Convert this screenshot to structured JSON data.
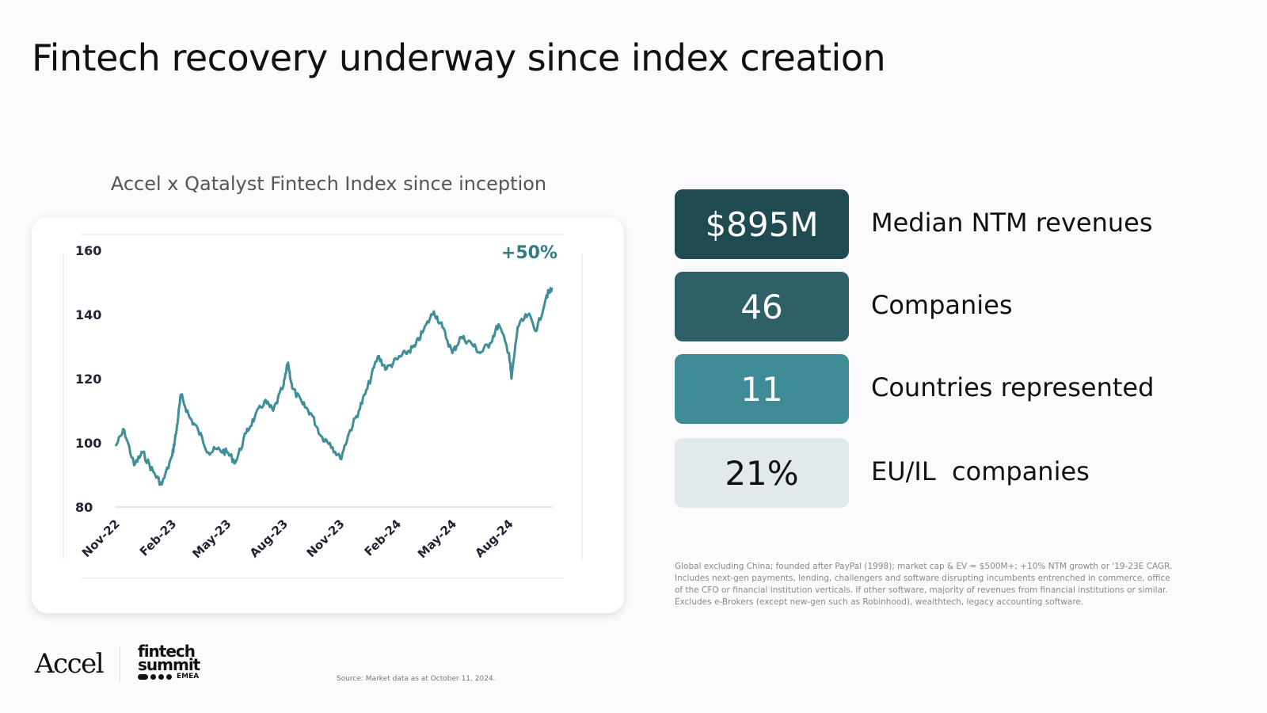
{
  "slide": {
    "title": "Fintech recovery underway since index creation",
    "chart_heading": "Accel x Qatalyst Fintech Index since inception",
    "footnote": "Global excluding China; founded after PayPal (1998); market cap & EV = $500M+; +10% NTM growth or '19-23E CAGR. Includes next-gen payments, lending, challengers and software disrupting incumbents entrenched in commerce, office of the CFO or financial institution verticals. If other software, majority of revenues from financial institutions or similar. Excludes e-Brokers (except new-gen such as Robinhood), wealthtech, legacy accounting software.",
    "source": "Source: Market data as at October 11, 2024.",
    "logos": {
      "accel": "Accel",
      "fintech_line1": "fintech",
      "fintech_line2": "summit",
      "fintech_line3": "EMEA"
    }
  },
  "stats": [
    {
      "value": "$895M",
      "label": "Median NTM revenues",
      "color": "#1f4a4f",
      "text_color": "#ffffff"
    },
    {
      "value": "46",
      "label": "Companies",
      "color": "#2f6068",
      "text_color": "#ffffff"
    },
    {
      "value": "11",
      "label": "Countries represented",
      "color": "#3f8b96",
      "text_color": "#ffffff"
    },
    {
      "value": "21%",
      "label": "EU/IL  companies",
      "color": "#e1e9eb",
      "text_color": "#111111"
    }
  ],
  "colors": {
    "line": "#3f8e98",
    "annotation": "#2f7c86",
    "accent_dark": "#1f4a4f"
  },
  "chart_data": {
    "type": "line",
    "title": "Accel x Qatalyst Fintech Index since inception",
    "xlabel": "",
    "ylabel": "",
    "ylim": [
      80,
      160
    ],
    "y_ticks": [
      160,
      140,
      120,
      100,
      80
    ],
    "x_tick_labels": [
      "Nov-22",
      "Feb-23",
      "May-23",
      "Aug-23",
      "Nov-23",
      "Feb-24",
      "May-24",
      "Aug-24"
    ],
    "x_range": [
      "2022-11-01",
      "2024-10-11"
    ],
    "annotation": "+50%",
    "grid": false,
    "series": [
      {
        "x": [
          "2022-11-01",
          "2022-11-15",
          "2022-12-01",
          "2022-12-15",
          "2023-01-01",
          "2023-01-15",
          "2023-02-01",
          "2023-02-08",
          "2023-02-15",
          "2023-03-01",
          "2023-03-15",
          "2023-04-01",
          "2023-04-15",
          "2023-05-01",
          "2023-05-15",
          "2023-06-01",
          "2023-06-15",
          "2023-07-01",
          "2023-07-15",
          "2023-08-01",
          "2023-08-08",
          "2023-08-15",
          "2023-09-01",
          "2023-09-15",
          "2023-10-01",
          "2023-10-15",
          "2023-11-01",
          "2023-11-15",
          "2023-12-01",
          "2023-12-15",
          "2024-01-01",
          "2024-01-15",
          "2024-02-01",
          "2024-02-15",
          "2024-03-01",
          "2024-03-15",
          "2024-04-01",
          "2024-04-15",
          "2024-05-01",
          "2024-05-15",
          "2024-06-01",
          "2024-06-15",
          "2024-07-01",
          "2024-07-15",
          "2024-08-01",
          "2024-08-05",
          "2024-08-15",
          "2024-09-01",
          "2024-09-15",
          "2024-10-01",
          "2024-10-11"
        ],
        "y": [
          99,
          104,
          93,
          97,
          91,
          87,
          96,
          104,
          115,
          108,
          104,
          97,
          98,
          97,
          94,
          103,
          108,
          113,
          110,
          118,
          125,
          117,
          112,
          109,
          102,
          100,
          95,
          103,
          110,
          117,
          127,
          123,
          126,
          128,
          130,
          135,
          141,
          136,
          128,
          133,
          131,
          128,
          131,
          137,
          128,
          120,
          136,
          140,
          135,
          146,
          148
        ]
      }
    ]
  }
}
